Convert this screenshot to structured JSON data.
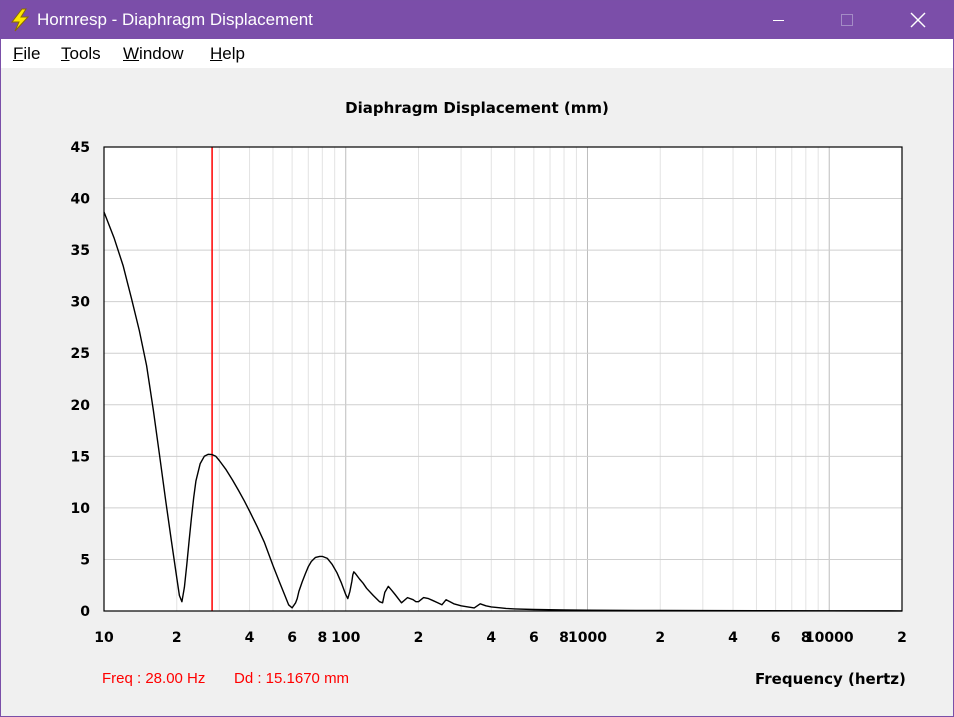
{
  "window": {
    "title": "Hornresp - Diaphragm Displacement",
    "icon": "lightning-bolt-icon",
    "controls": [
      "minimize-icon",
      "maximize-icon",
      "close-icon"
    ]
  },
  "menu": {
    "items": [
      {
        "label": "File",
        "mnemonic": "F",
        "rest": "ile"
      },
      {
        "label": "Tools",
        "mnemonic": "T",
        "rest": "ools"
      },
      {
        "label": "Window",
        "mnemonic": "W",
        "rest": "indow"
      },
      {
        "label": "Help",
        "mnemonic": "H",
        "rest": "elp"
      }
    ]
  },
  "status": {
    "freq": "Freq : 28.00 Hz",
    "dd": "Dd : 15.1670 mm"
  },
  "colors": {
    "titlebar": "#7b4ea9",
    "curve": "#000000",
    "marker": "#ff0000",
    "grid": "#c8c8c8"
  },
  "chart_data": {
    "type": "line",
    "title": "Diaphragm Displacement (mm)",
    "xlabel": "Frequency (hertz)",
    "ylabel": "",
    "xscale": "log",
    "xlim": [
      10,
      20000
    ],
    "ylim": [
      0,
      45
    ],
    "grid": true,
    "yticks": [
      "0",
      "5",
      "10",
      "15",
      "20",
      "25",
      "30",
      "35",
      "40",
      "45"
    ],
    "xtick_labels": [
      {
        "value": 10,
        "label": "10"
      },
      {
        "value": 20,
        "label": "2"
      },
      {
        "value": 40,
        "label": "4"
      },
      {
        "value": 60,
        "label": "6"
      },
      {
        "value": 80,
        "label": "8"
      },
      {
        "value": 100,
        "label": "100"
      },
      {
        "value": 200,
        "label": "2"
      },
      {
        "value": 400,
        "label": "4"
      },
      {
        "value": 600,
        "label": "6"
      },
      {
        "value": 800,
        "label": "8"
      },
      {
        "value": 1000,
        "label": "1000"
      },
      {
        "value": 2000,
        "label": "2"
      },
      {
        "value": 4000,
        "label": "4"
      },
      {
        "value": 6000,
        "label": "6"
      },
      {
        "value": 8000,
        "label": "8"
      },
      {
        "value": 10000,
        "label": "10000"
      },
      {
        "value": 20000,
        "label": "2"
      }
    ],
    "marker_freq": 28.0,
    "series": [
      {
        "x": [
          10,
          11,
          12,
          13,
          14,
          15,
          16,
          17,
          18,
          19,
          20,
          20.5,
          21,
          21.5,
          22,
          22.5,
          23,
          23.5,
          24,
          25,
          26,
          27,
          28,
          29,
          30,
          32,
          34,
          36,
          38,
          40,
          43,
          46,
          50,
          53,
          56,
          58,
          60,
          62,
          63,
          64,
          66,
          68,
          70,
          72,
          75,
          78,
          80,
          84,
          88,
          92,
          96,
          100,
          102,
          104,
          106,
          107,
          108,
          110,
          114,
          118,
          122,
          130,
          138,
          142,
          145,
          150,
          155,
          160,
          170,
          180,
          190,
          195,
          200,
          210,
          220,
          230,
          240,
          250,
          260,
          270,
          280,
          290,
          300,
          320,
          340,
          360,
          380,
          400,
          420,
          440,
          460,
          480,
          500,
          600,
          800,
          1000,
          2000,
          5000,
          10000,
          20000
        ],
        "y": [
          38.7,
          36.2,
          33.5,
          30.3,
          27.2,
          23.8,
          19.5,
          15.0,
          10.7,
          6.8,
          3.2,
          1.5,
          0.9,
          2.3,
          4.5,
          6.8,
          9.0,
          11.0,
          12.6,
          14.3,
          15.0,
          15.2,
          15.17,
          15.0,
          14.6,
          13.7,
          12.7,
          11.7,
          10.7,
          9.7,
          8.2,
          6.7,
          4.4,
          2.9,
          1.5,
          0.6,
          0.3,
          0.8,
          1.2,
          1.9,
          2.8,
          3.6,
          4.3,
          4.8,
          5.2,
          5.3,
          5.3,
          5.1,
          4.5,
          3.7,
          2.7,
          1.6,
          1.2,
          1.9,
          2.9,
          3.5,
          3.8,
          3.6,
          3.1,
          2.7,
          2.2,
          1.5,
          0.9,
          0.8,
          1.8,
          2.4,
          2.0,
          1.6,
          0.8,
          1.3,
          1.1,
          0.9,
          0.9,
          1.3,
          1.2,
          1.0,
          0.8,
          0.6,
          1.1,
          0.9,
          0.7,
          0.6,
          0.5,
          0.4,
          0.3,
          0.7,
          0.5,
          0.4,
          0.35,
          0.3,
          0.25,
          0.22,
          0.2,
          0.15,
          0.1,
          0.08,
          0.05,
          0.03,
          0.02,
          0.01
        ]
      }
    ]
  }
}
